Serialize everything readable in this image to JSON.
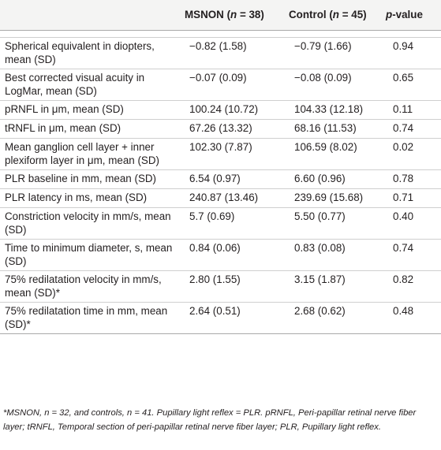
{
  "header": {
    "col1": "",
    "group1": "MSNON",
    "group1_n": "38",
    "group2": "Control",
    "group2_n": "45",
    "pvalue_p": "p",
    "pvalue_rest": "-value"
  },
  "rows": [
    {
      "label": "Spherical equivalent in diopters, mean (SD)",
      "msnon": "−0.82 (1.58)",
      "control": "−0.79 (1.66)",
      "p": "0.94"
    },
    {
      "label": "Best corrected visual acuity in LogMar, mean (SD)",
      "msnon": "−0.07 (0.09)",
      "control": "−0.08 (0.09)",
      "p": "0.65"
    },
    {
      "label": "pRNFL in μm, mean (SD)",
      "msnon": "100.24 (10.72)",
      "control": "104.33 (12.18)",
      "p": "0.11"
    },
    {
      "label": "tRNFL in μm, mean (SD)",
      "msnon": "67.26 (13.32)",
      "control": "68.16 (11.53)",
      "p": "0.74"
    },
    {
      "label": "Mean ganglion cell layer + inner plexiform layer in μm, mean (SD)",
      "msnon": "102.30 (7.87)",
      "control": "106.59 (8.02)",
      "p": "0.02"
    },
    {
      "label": "PLR baseline in mm, mean (SD)",
      "msnon": "6.54 (0.97)",
      "control": "6.60 (0.96)",
      "p": "0.78"
    },
    {
      "label": "PLR latency in ms, mean (SD)",
      "msnon": "240.87 (13.46)",
      "control": "239.69 (15.68)",
      "p": "0.71"
    },
    {
      "label": "Constriction velocity in mm/s, mean (SD)",
      "msnon": "5.7 (0.69)",
      "control": "5.50 (0.77)",
      "p": "0.40"
    },
    {
      "label": "Time to minimum diameter, s, mean (SD)",
      "msnon": "0.84 (0.06)",
      "control": "0.83 (0.08)",
      "p": "0.74"
    },
    {
      "label": "75% redilatation velocity in mm/s, mean (SD)*",
      "msnon": "2.80 (1.55)",
      "control": "3.15 (1.87)",
      "p": "0.82"
    },
    {
      "label": "75% redilatation time in mm, mean (SD)*",
      "msnon": "2.64 (0.51)",
      "control": "2.68 (0.62)",
      "p": "0.48"
    }
  ],
  "footnote": "*MSNON, n = 32, and controls, n = 41. Pupillary light reflex = PLR. pRNFL, Peri-papillar retinal nerve fiber layer; tRNFL, Temporal section of peri-papillar retinal nerve fiber layer; PLR, Pupillary light reflex."
}
